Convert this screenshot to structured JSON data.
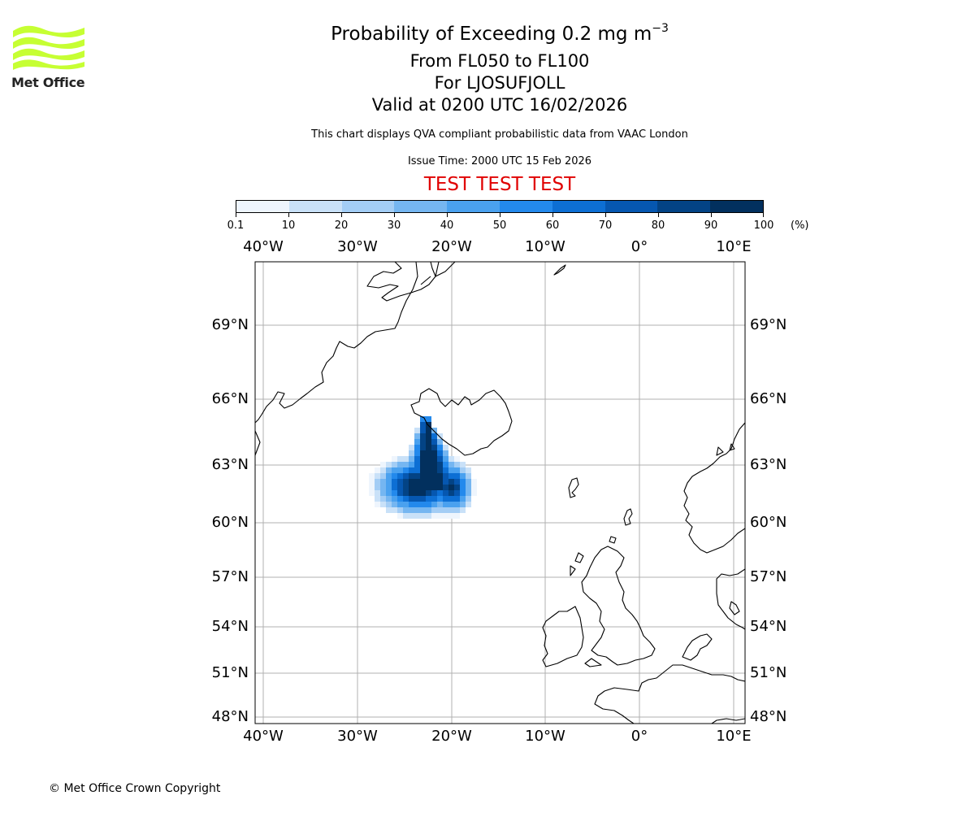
{
  "logo": {
    "text": "Met Office",
    "color": "#c6ff33"
  },
  "header": {
    "title_main": "Probability of Exceeding 0.2 mg m",
    "title_exp": "−3",
    "line1": "From FL050 to FL100",
    "line2": "For LJOSUFJOLL",
    "line3": "Valid at 0200 UTC 16/02/2026",
    "note": "This chart displays QVA compliant probabilistic data from VAAC London",
    "issue": "Issue Time: 2000 UTC 15 Feb 2026",
    "test": "TEST TEST TEST"
  },
  "colorbar": {
    "ticks": [
      "0.1",
      "10",
      "20",
      "30",
      "40",
      "50",
      "60",
      "70",
      "80",
      "90",
      "100"
    ],
    "unit": "(%)",
    "colors": [
      "#eef5fd",
      "#c9e1f8",
      "#a3cdf5",
      "#75b6f1",
      "#4aa1ef",
      "#2389ec",
      "#0d6fd4",
      "#0657b0",
      "#034385",
      "#02305e"
    ]
  },
  "map": {
    "lon_labels": [
      "40°W",
      "30°W",
      "20°W",
      "10°W",
      "0°",
      "10°E"
    ],
    "lat_labels": [
      "69°N",
      "66°N",
      "63°N",
      "60°N",
      "57°N",
      "54°N",
      "51°N",
      "48°N"
    ],
    "plume_peak_color": "#02305e",
    "grid_color": "#b0b0b0"
  },
  "footer": {
    "copyright": "© Met Office Crown Copyright"
  }
}
